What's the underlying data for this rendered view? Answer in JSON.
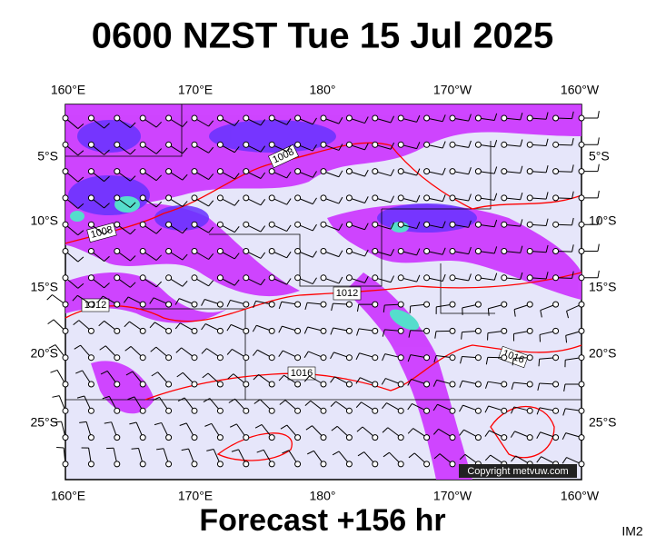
{
  "title": "0600 NZST Tue 15 Jul 2025",
  "subtitle": "Forecast +156 hr",
  "code": "IM2",
  "copyright": "Copyright metvuw.com",
  "longitude_labels": [
    "160°E",
    "170°E",
    "180°",
    "170°W",
    "160°W"
  ],
  "latitude_labels": [
    "5°S",
    "10°S",
    "15°S",
    "20°S",
    "25°S"
  ],
  "isobar_labels": [
    "1008",
    "1008",
    "1012",
    "1012",
    "1016",
    "1016"
  ]
}
